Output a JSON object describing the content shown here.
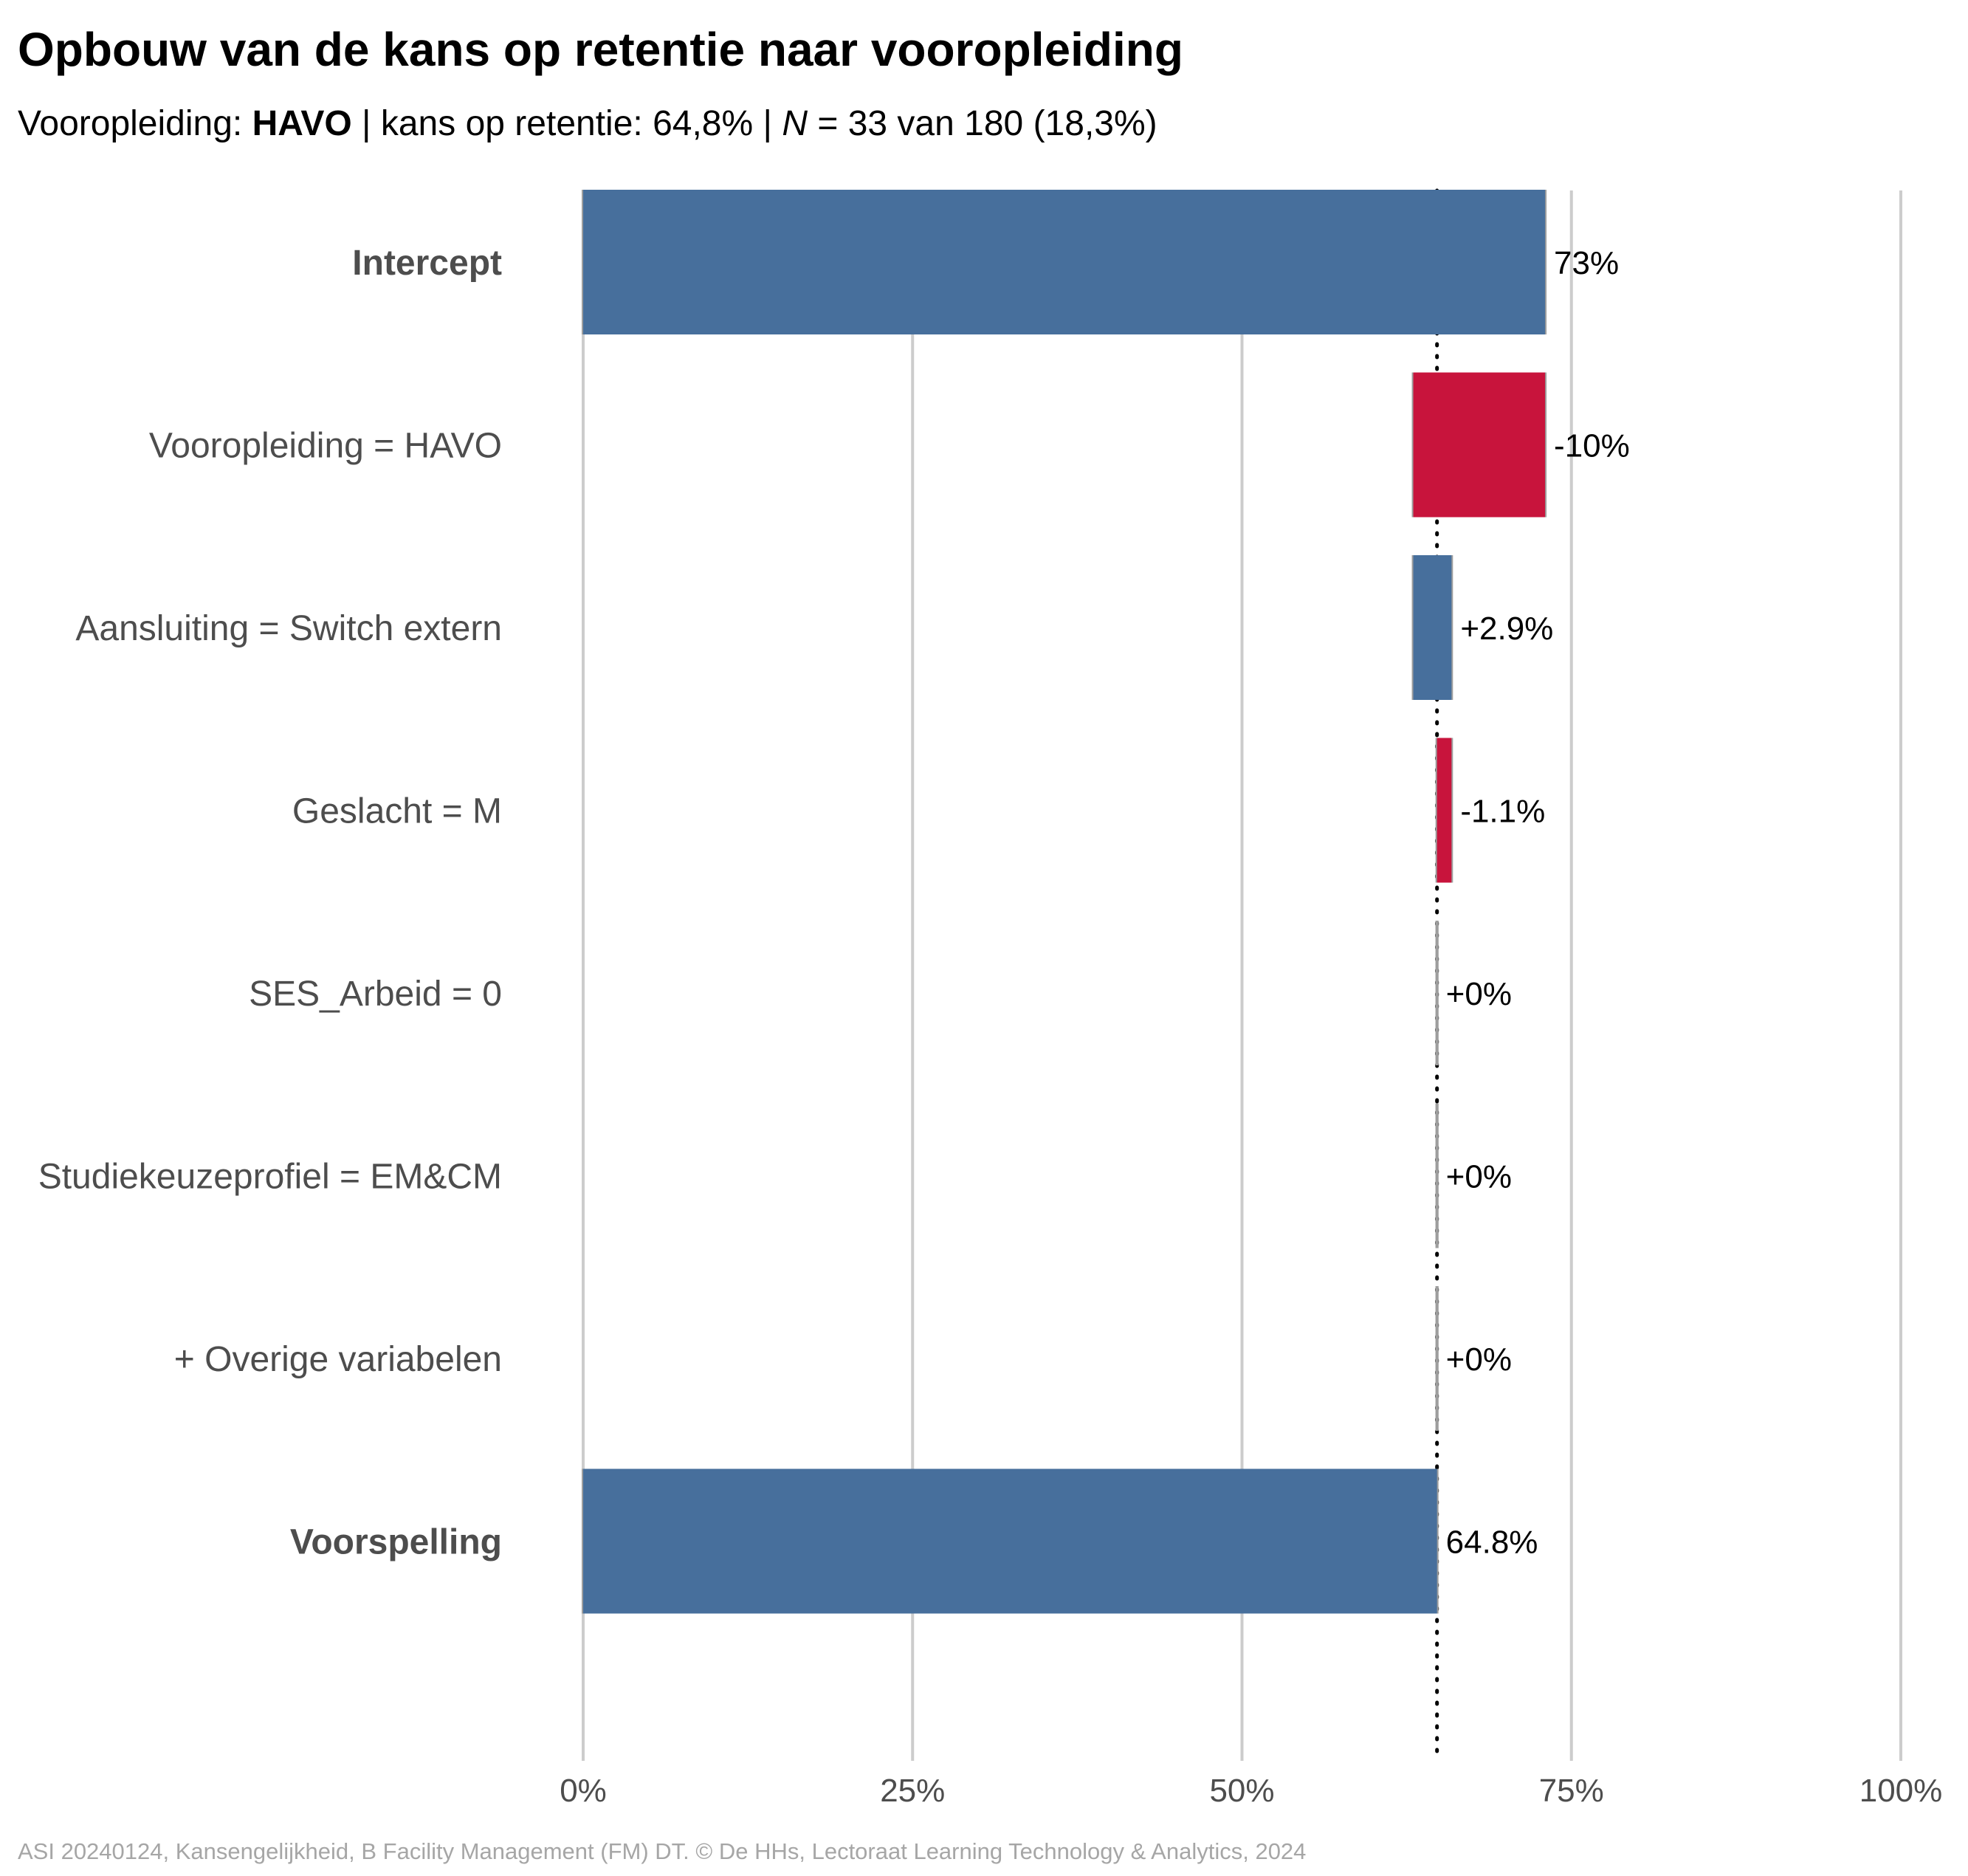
{
  "title": "Opbouw van de kans op retentie naar vooropleiding",
  "subtitle": {
    "part1": "Vooropleiding: ",
    "bold": "HAVO",
    "part2": " | kans op retentie: 64,8% | ",
    "italic": "N",
    "part3": " = 33 van 180 (18,3%)"
  },
  "caption": "ASI 20240124, Kansengelijkheid, B Facility Management (FM) DT. © De HHs, Lectoraat Learning Technology & Analytics, 2024",
  "colors": {
    "positive": "#476f9c",
    "negative": "#c8143c",
    "grid": "#cccccc",
    "connector": "#9e9e9e"
  },
  "chart_data": {
    "type": "bar",
    "orientation": "horizontal waterfall",
    "xlim": [
      0,
      100
    ],
    "x_ticks": [
      "0%",
      "25%",
      "50%",
      "75%",
      "100%"
    ],
    "reference_line": 64.8,
    "rows": [
      {
        "label": "Intercept",
        "bold": true,
        "start": 0,
        "end": 73,
        "value_label": "73%",
        "sign": "positive"
      },
      {
        "label": "Vooropleiding = HAVO",
        "bold": false,
        "start": 73,
        "end": 63,
        "value_label": "-10%",
        "sign": "negative"
      },
      {
        "label": "Aansluiting = Switch extern",
        "bold": false,
        "start": 63,
        "end": 65.9,
        "value_label": "+2.9%",
        "sign": "positive"
      },
      {
        "label": "Geslacht = M",
        "bold": false,
        "start": 65.9,
        "end": 64.8,
        "value_label": "-1.1%",
        "sign": "negative"
      },
      {
        "label": "SES_Arbeid = 0",
        "bold": false,
        "start": 64.8,
        "end": 64.8,
        "value_label": "+0%",
        "sign": "positive"
      },
      {
        "label": "Studiekeuzeprofiel = EM&CM",
        "bold": false,
        "start": 64.8,
        "end": 64.8,
        "value_label": "+0%",
        "sign": "positive"
      },
      {
        "label": "+ Overige variabelen",
        "bold": false,
        "start": 64.8,
        "end": 64.8,
        "value_label": "+0%",
        "sign": "positive"
      },
      {
        "label": "Voorspelling",
        "bold": true,
        "start": 0,
        "end": 64.8,
        "value_label": "64.8%",
        "sign": "positive"
      }
    ]
  }
}
